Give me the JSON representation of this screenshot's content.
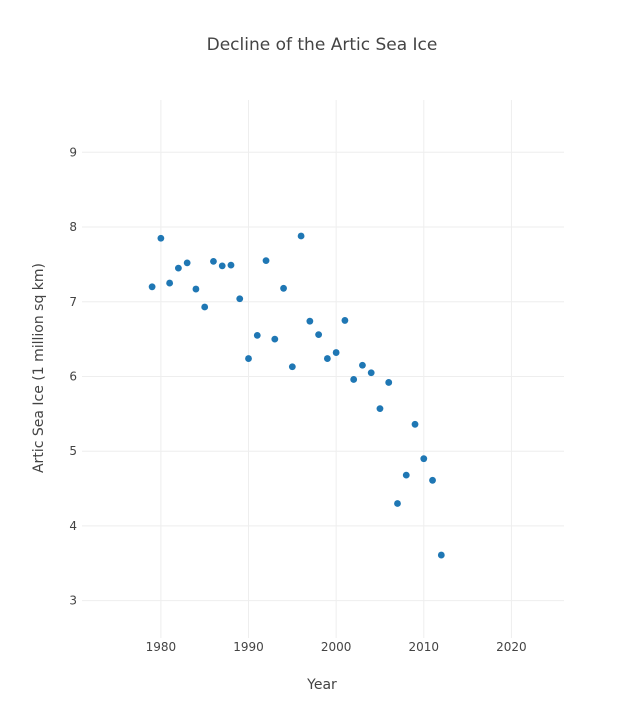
{
  "chart_data": {
    "type": "scatter",
    "title": "Decline of the Artic Sea Ice",
    "xlabel": "Year",
    "ylabel": "Artic Sea Ice (1 million sq km)",
    "xlim": [
      1971,
      2026
    ],
    "ylim": [
      2.5,
      9.7
    ],
    "x_ticks": [
      1980,
      1990,
      2000,
      2010,
      2020
    ],
    "y_ticks": [
      3,
      4,
      5,
      6,
      7,
      8,
      9
    ],
    "grid": true,
    "series": [
      {
        "color": "#1f77b4",
        "points": [
          {
            "x": 1979,
            "y": 7.2
          },
          {
            "x": 1980,
            "y": 7.85
          },
          {
            "x": 1981,
            "y": 7.25
          },
          {
            "x": 1982,
            "y": 7.45
          },
          {
            "x": 1983,
            "y": 7.52
          },
          {
            "x": 1984,
            "y": 7.17
          },
          {
            "x": 1985,
            "y": 6.93
          },
          {
            "x": 1986,
            "y": 7.54
          },
          {
            "x": 1987,
            "y": 7.48
          },
          {
            "x": 1988,
            "y": 7.49
          },
          {
            "x": 1989,
            "y": 7.04
          },
          {
            "x": 1990,
            "y": 6.24
          },
          {
            "x": 1991,
            "y": 6.55
          },
          {
            "x": 1992,
            "y": 7.55
          },
          {
            "x": 1993,
            "y": 6.5
          },
          {
            "x": 1994,
            "y": 7.18
          },
          {
            "x": 1995,
            "y": 6.13
          },
          {
            "x": 1996,
            "y": 7.88
          },
          {
            "x": 1997,
            "y": 6.74
          },
          {
            "x": 1998,
            "y": 6.56
          },
          {
            "x": 1999,
            "y": 6.24
          },
          {
            "x": 2000,
            "y": 6.32
          },
          {
            "x": 2001,
            "y": 6.75
          },
          {
            "x": 2002,
            "y": 5.96
          },
          {
            "x": 2003,
            "y": 6.15
          },
          {
            "x": 2004,
            "y": 6.05
          },
          {
            "x": 2005,
            "y": 5.57
          },
          {
            "x": 2006,
            "y": 5.92
          },
          {
            "x": 2007,
            "y": 4.3
          },
          {
            "x": 2008,
            "y": 4.68
          },
          {
            "x": 2009,
            "y": 5.36
          },
          {
            "x": 2010,
            "y": 4.9
          },
          {
            "x": 2011,
            "y": 4.61
          },
          {
            "x": 2012,
            "y": 3.61
          }
        ]
      }
    ]
  }
}
